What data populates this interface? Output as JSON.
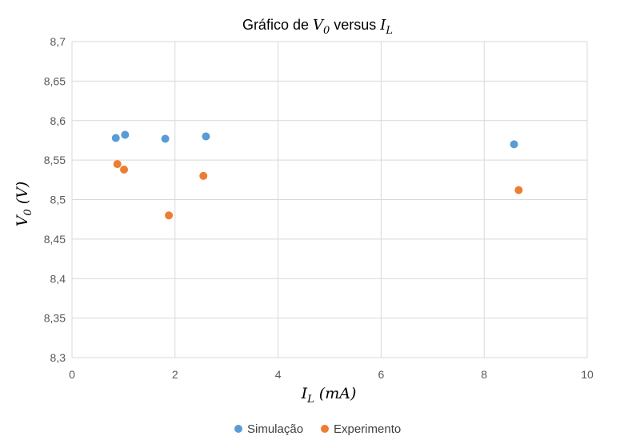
{
  "chart_data": {
    "type": "scatter",
    "title": {
      "prefix": "Gráfico de ",
      "var1": "V",
      "var1_sub": "0",
      "middle": " versus ",
      "var2": "I",
      "var2_sub": "L"
    },
    "xlabel": {
      "var": "I",
      "sub": "L",
      "unit": " (mA)"
    },
    "ylabel": {
      "var": "V",
      "sub": "0",
      "unit": " (V)"
    },
    "xlim": [
      0,
      10
    ],
    "ylim": [
      8.3,
      8.7
    ],
    "xticks": [
      {
        "v": 0,
        "label": "0"
      },
      {
        "v": 2,
        "label": "2"
      },
      {
        "v": 4,
        "label": "4"
      },
      {
        "v": 6,
        "label": "6"
      },
      {
        "v": 8,
        "label": "8"
      },
      {
        "v": 10,
        "label": "10"
      }
    ],
    "yticks": [
      {
        "v": 8.3,
        "label": "8,3"
      },
      {
        "v": 8.35,
        "label": "8,35"
      },
      {
        "v": 8.4,
        "label": "8,4"
      },
      {
        "v": 8.45,
        "label": "8,45"
      },
      {
        "v": 8.5,
        "label": "8,5"
      },
      {
        "v": 8.55,
        "label": "8,55"
      },
      {
        "v": 8.6,
        "label": "8,6"
      },
      {
        "v": 8.65,
        "label": "8,65"
      },
      {
        "v": 8.7,
        "label": "8,7"
      }
    ],
    "grid": true,
    "legend_position": "bottom",
    "series": [
      {
        "name": "Simulação",
        "color": "#5B9BD5",
        "points": [
          {
            "x": 0.85,
            "y": 8.578
          },
          {
            "x": 1.03,
            "y": 8.582
          },
          {
            "x": 1.81,
            "y": 8.577
          },
          {
            "x": 2.6,
            "y": 8.58
          },
          {
            "x": 8.58,
            "y": 8.57
          }
        ]
      },
      {
        "name": "Experimento",
        "color": "#ED7D31",
        "points": [
          {
            "x": 0.88,
            "y": 8.545
          },
          {
            "x": 1.01,
            "y": 8.538
          },
          {
            "x": 1.88,
            "y": 8.48
          },
          {
            "x": 2.55,
            "y": 8.53
          },
          {
            "x": 8.67,
            "y": 8.512
          }
        ]
      }
    ]
  }
}
